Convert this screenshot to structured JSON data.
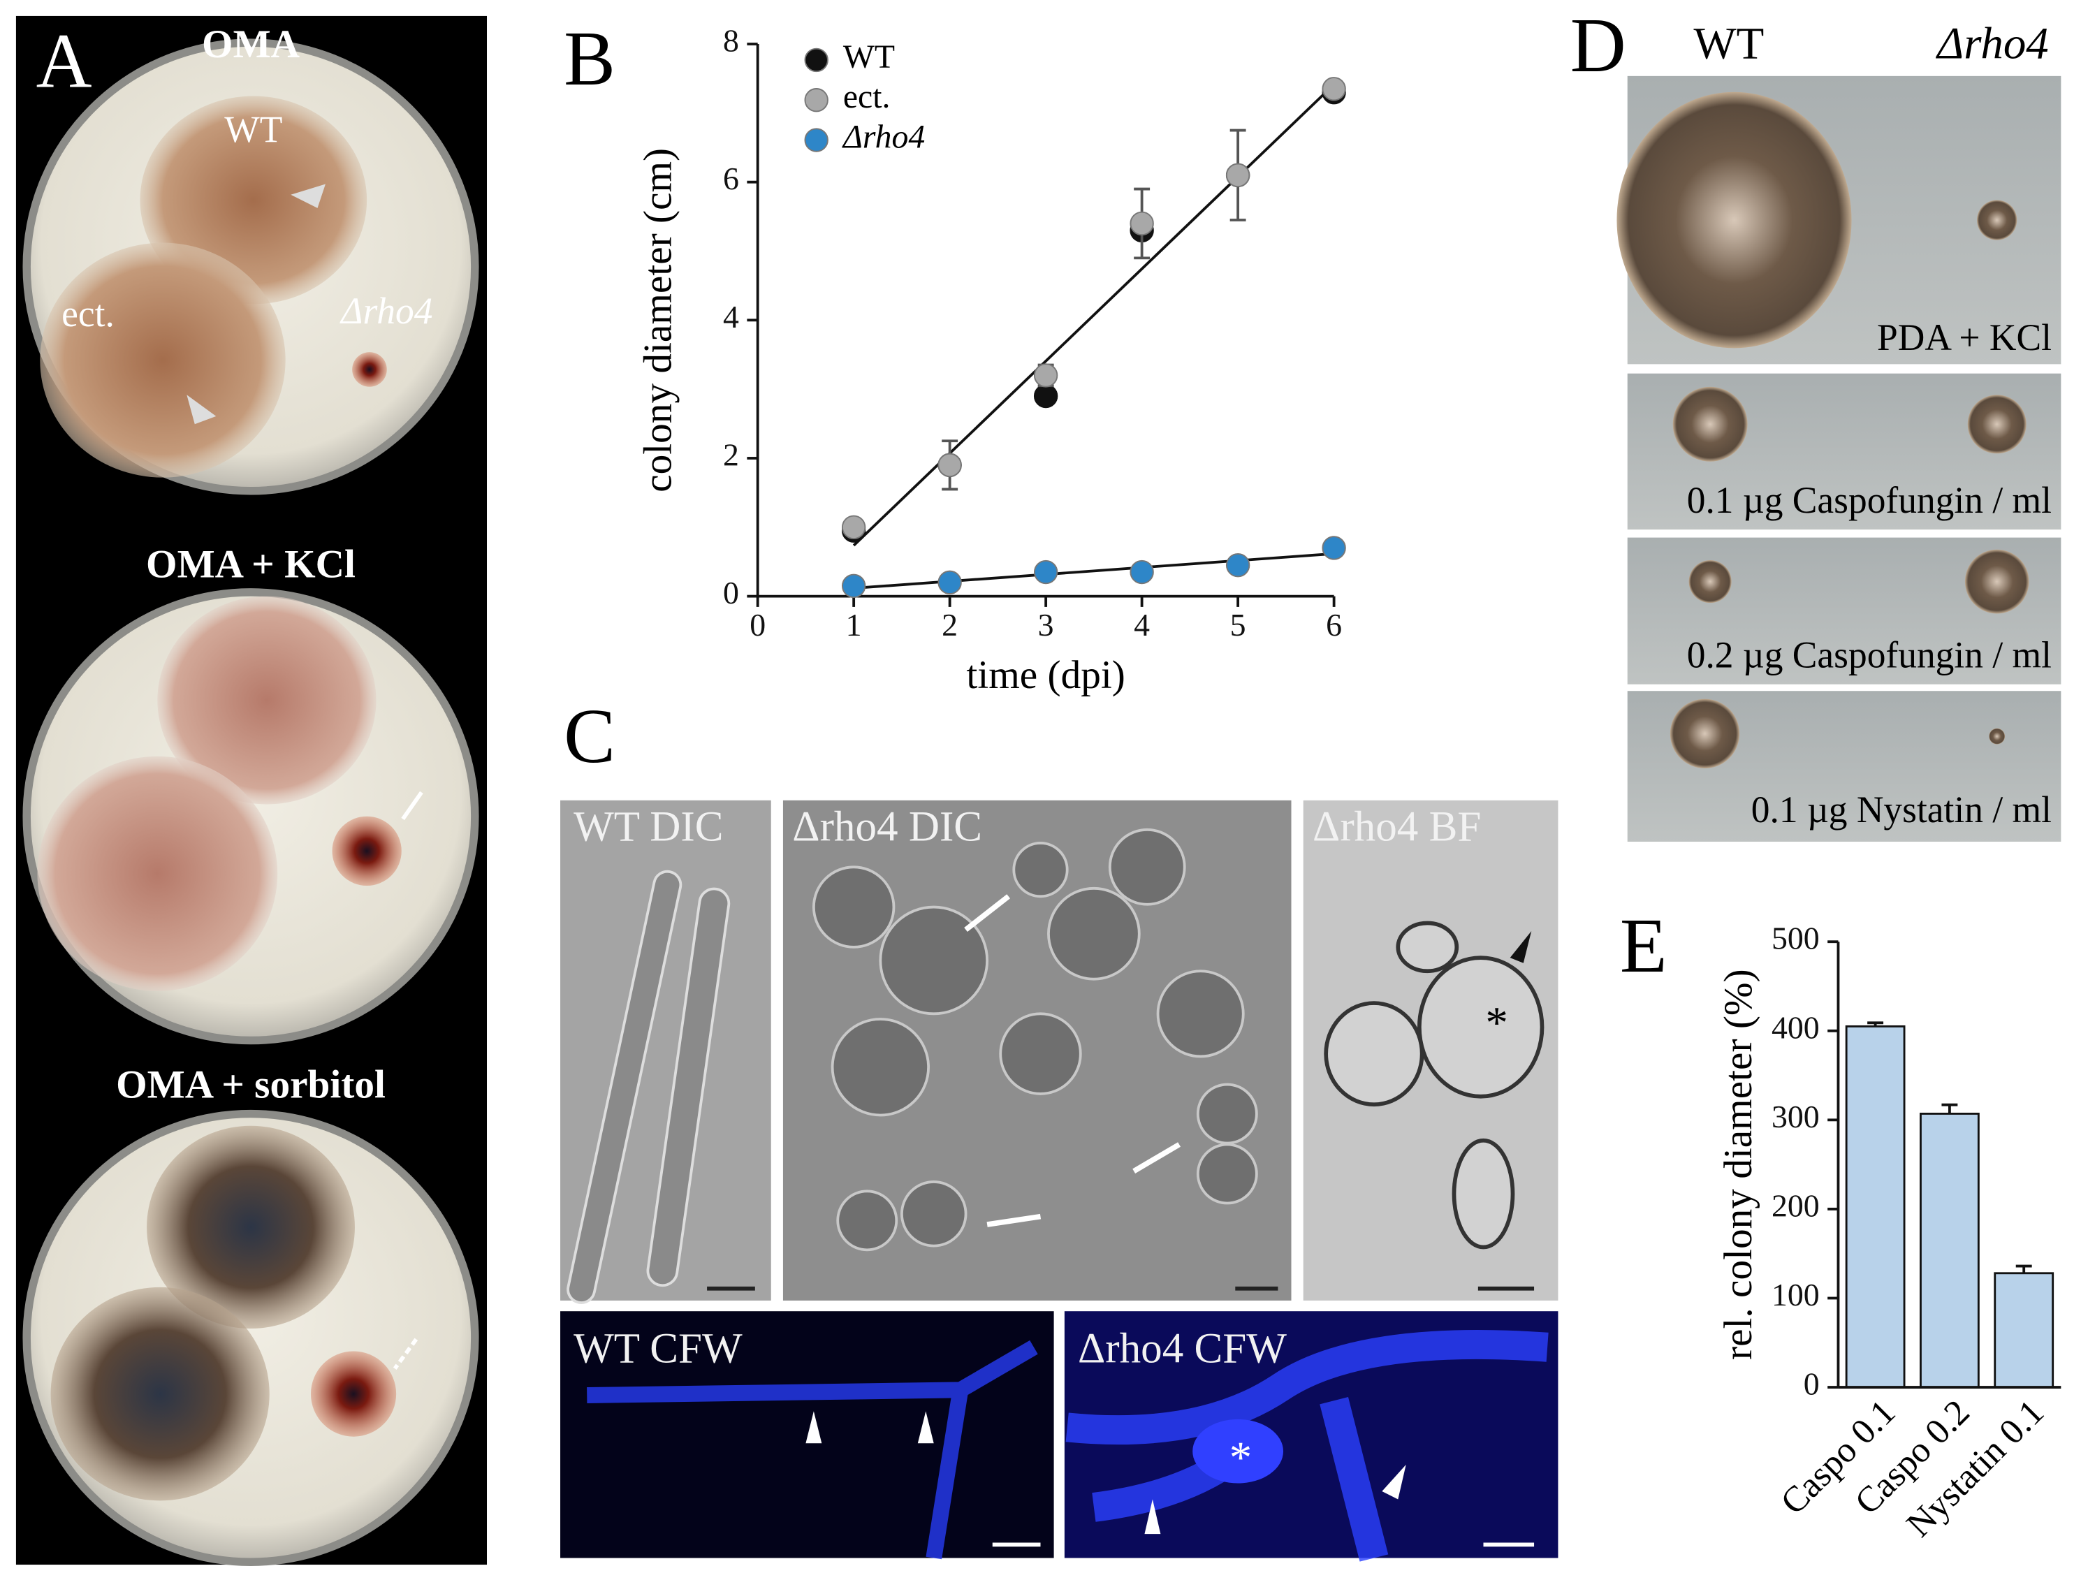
{
  "panels": {
    "A": {
      "label": "A",
      "plates": [
        {
          "title": "OMA",
          "strains": [
            "WT",
            "ect.",
            "Δrho4"
          ]
        },
        {
          "title": "OMA + KCl"
        },
        {
          "title": "OMA + sorbitol"
        }
      ]
    },
    "C": {
      "label": "C",
      "images": [
        "WT DIC",
        "Δrho4 DIC",
        "Δrho4 BF",
        "WT CFW",
        "Δrho4 CFW"
      ]
    },
    "D": {
      "label": "D",
      "columns": [
        "WT",
        "Δrho4"
      ],
      "conditions": [
        "PDA + KCl",
        "0.1 µg Caspofungin / ml",
        "0.2 µg Caspofungin / ml",
        "0.1 µg Nystatin / ml"
      ]
    }
  },
  "chart_data": [
    {
      "type": "scatter",
      "panel": "B",
      "x_label": "time (dpi)",
      "y_label": "colony diameter (cm)",
      "x": [
        1,
        2,
        3,
        4,
        5,
        6
      ],
      "series": [
        {
          "name": "WT",
          "color": "#111111",
          "values": [
            0.95,
            1.9,
            2.9,
            5.3,
            6.1,
            7.3
          ],
          "trendline": true
        },
        {
          "name": "ect.",
          "color": "#a8a8a8",
          "values": [
            1.0,
            1.9,
            3.2,
            5.4,
            6.1,
            7.35
          ],
          "errors": [
            0.1,
            0.35,
            0.15,
            0.5,
            0.65,
            0.1
          ]
        },
        {
          "name": "Δrho4",
          "color": "#2e86c8",
          "values": [
            0.15,
            0.2,
            0.35,
            0.35,
            0.45,
            0.7
          ],
          "trendline": true
        }
      ],
      "xlim": [
        0,
        6
      ],
      "ylim": [
        0,
        8
      ],
      "xticks": [
        0,
        1,
        2,
        3,
        4,
        5,
        6
      ],
      "yticks": [
        0,
        2,
        4,
        6,
        8
      ]
    },
    {
      "type": "bar",
      "panel": "E",
      "y_label": "rel. colony diameter (%)",
      "categories": [
        "Caspo 0.1",
        "Caspo 0.2",
        "Nystatin 0.1"
      ],
      "values": [
        405,
        307,
        128
      ],
      "errors": [
        4,
        10,
        8
      ],
      "color": "#b8d2ea",
      "ylim": [
        0,
        500
      ],
      "yticks": [
        0,
        100,
        200,
        300,
        400,
        500
      ]
    }
  ]
}
